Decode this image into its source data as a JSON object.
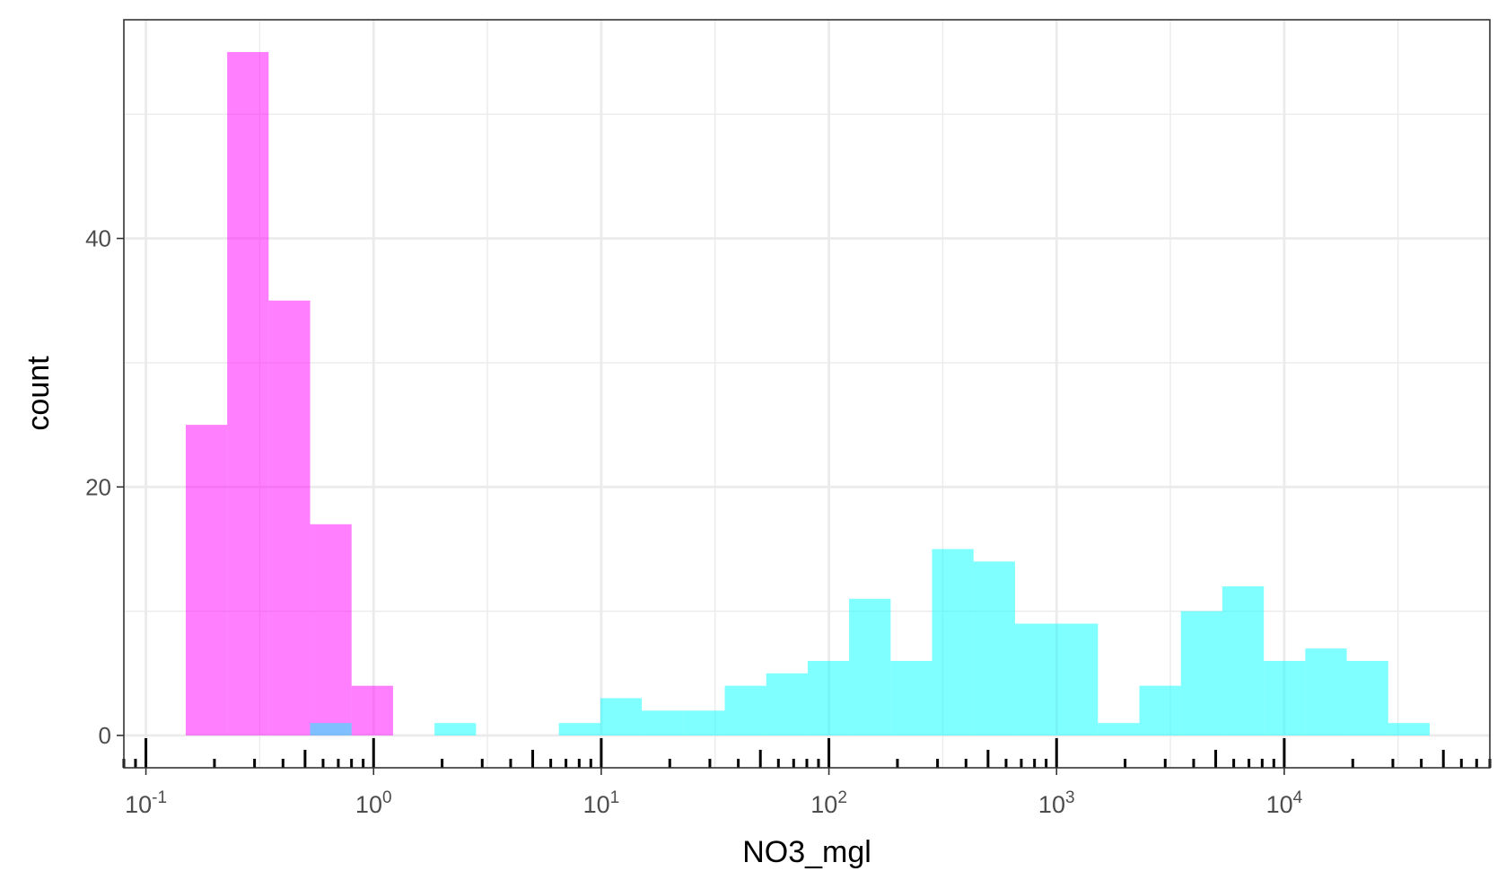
{
  "chart_data": {
    "type": "bar",
    "xlabel": "NO3_mgl",
    "ylabel": "count",
    "x_scale": "log10",
    "xlim": [
      0.08,
      80000
    ],
    "ylim": [
      -2.6,
      57.6
    ],
    "y_ticks": [
      0,
      20,
      40
    ],
    "x_ticks": [
      {
        "base": "10",
        "exp": "-1"
      },
      {
        "base": "10",
        "exp": "0"
      },
      {
        "base": "10",
        "exp": "1"
      },
      {
        "base": "10",
        "exp": "2"
      },
      {
        "base": "10",
        "exp": "3"
      },
      {
        "base": "10",
        "exp": "4"
      }
    ],
    "grid": true,
    "annotation_logticks": true,
    "series": [
      {
        "color": "#ff00ff",
        "bins": [
          {
            "x0": 0.1496,
            "x1": 0.2275,
            "count": 25
          },
          {
            "x0": 0.2275,
            "x1": 0.346,
            "count": 55
          },
          {
            "x0": 0.346,
            "x1": 0.5263,
            "count": 35
          },
          {
            "x0": 0.5263,
            "x1": 0.8005,
            "count": 17
          },
          {
            "x0": 0.8005,
            "x1": 1.2176,
            "count": 4
          }
        ]
      },
      {
        "color": "#00ffff",
        "bins": [
          {
            "x0": 0.5263,
            "x1": 0.8005,
            "count": 1
          },
          {
            "x0": 1.852,
            "x1": 2.817,
            "count": 1
          },
          {
            "x0": 6.516,
            "x1": 9.911,
            "count": 1
          },
          {
            "x0": 9.911,
            "x1": 15.07,
            "count": 3
          },
          {
            "x0": 15.07,
            "x1": 22.93,
            "count": 2
          },
          {
            "x0": 22.93,
            "x1": 34.88,
            "count": 2
          },
          {
            "x0": 34.88,
            "x1": 53.05,
            "count": 4
          },
          {
            "x0": 53.05,
            "x1": 80.69,
            "count": 5
          },
          {
            "x0": 80.69,
            "x1": 122.7,
            "count": 6
          },
          {
            "x0": 122.7,
            "x1": 186.7,
            "count": 11
          },
          {
            "x0": 186.7,
            "x1": 283.9,
            "count": 6
          },
          {
            "x0": 283.9,
            "x1": 431.8,
            "count": 15
          },
          {
            "x0": 431.8,
            "x1": 656.8,
            "count": 14
          },
          {
            "x0": 656.8,
            "x1": 999,
            "count": 9
          },
          {
            "x0": 999,
            "x1": 1519.5,
            "count": 9
          },
          {
            "x0": 1519.5,
            "x1": 2311,
            "count": 1
          },
          {
            "x0": 2311,
            "x1": 3515,
            "count": 4
          },
          {
            "x0": 3515,
            "x1": 5347,
            "count": 10
          },
          {
            "x0": 5347,
            "x1": 8133,
            "count": 12
          },
          {
            "x0": 8133,
            "x1": 12371,
            "count": 6
          },
          {
            "x0": 12371,
            "x1": 18816,
            "count": 7
          },
          {
            "x0": 18816,
            "x1": 28620,
            "count": 6
          },
          {
            "x0": 28620,
            "x1": 43533,
            "count": 1
          }
        ]
      }
    ]
  }
}
